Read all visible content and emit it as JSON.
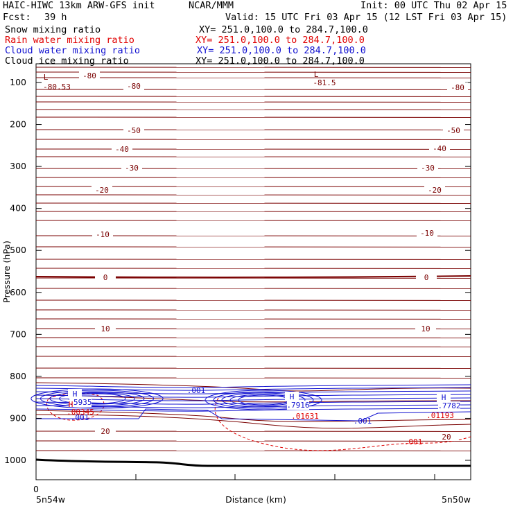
{
  "header": {
    "title_left": "HAIC-HIWC 13km ARW-GFS init",
    "org": "NCAR/MMM",
    "init": "Init: 00 UTC Thu 02 Apr 15",
    "fcst_label": "Fcst:",
    "fcst_value": "39 h",
    "valid": "Valid: 15 UTC Fri 03 Apr 15 (12 LST Fri 03 Apr 15)"
  },
  "fields": [
    {
      "name": "Snow mixing ratio",
      "xy": "XY= 251.0,100.0 to 284.7,100.0",
      "color": "#000000"
    },
    {
      "name": "Rain water mixing ratio",
      "xy": "XY= 251.0,100.0 to 284.7,100.0",
      "color": "#e00000"
    },
    {
      "name": "Cloud water mixing ratio",
      "xy": "XY= 251.0,100.0 to 284.7,100.0",
      "color": "#1010d0"
    },
    {
      "name": "Cloud ice mixing ratio",
      "xy": "XY= 251.0,100.0 to 284.7,100.0",
      "color": "#000000"
    }
  ],
  "colors": {
    "temperature": "#7a0000",
    "cloud_water": "#1010d0",
    "rain_water": "#e00000",
    "terrain": "#000000"
  },
  "chart_data": {
    "type": "cross-section contour",
    "ylabel": "Pressure (hPa)",
    "xlabel": "Distance (km)",
    "y_ticks": [
      100,
      200,
      300,
      400,
      500,
      600,
      700,
      800,
      900,
      1000
    ],
    "ylim": [
      1050,
      70
    ],
    "x_tick_value": "0",
    "x_left_label": "5n54w",
    "x_right_label": "5n50w",
    "temperature_label_levels": [
      -80,
      -50,
      -40,
      -30,
      -20,
      -10,
      0,
      10,
      20
    ],
    "temperature_labels": [
      "-80",
      "-80",
      "-80",
      "-50",
      "-50",
      "-40",
      "-40",
      "-30",
      "-30",
      "-20",
      "-20",
      "-10",
      "-10",
      "0",
      "0",
      "10",
      "10",
      "20",
      "20"
    ],
    "extrema": [
      {
        "mark": "L",
        "value": "-80.53",
        "field": "temperature"
      },
      {
        "mark": "L",
        "value": "-81.5",
        "field": "temperature"
      },
      {
        "mark": "H",
        "value": ".5935",
        "field": "cloud_water"
      },
      {
        "mark": "H",
        "value": ".7916",
        "field": "cloud_water"
      },
      {
        "mark": "H",
        "value": ".7782",
        "field": "cloud_water"
      }
    ],
    "cloud_water_labels": [
      ".001",
      ".001",
      ".001"
    ],
    "rain_water_labels": [
      ".00345",
      ".01631",
      ".01193",
      ".001"
    ],
    "rain_water_H": "H"
  }
}
